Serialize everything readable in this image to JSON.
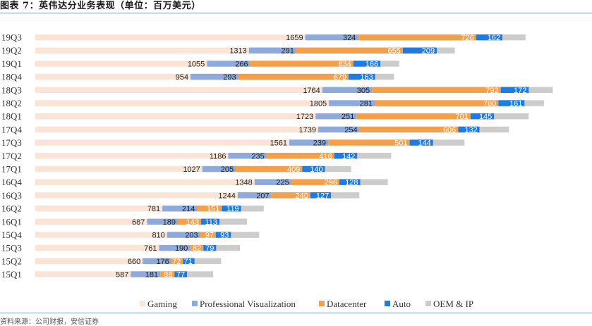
{
  "title": "图表 7：英伟达分业务表现（单位：百万美元）",
  "source": "资料来源：公司财报，安信证券",
  "chart_data": {
    "type": "bar",
    "orientation": "horizontal",
    "stacked": true,
    "title": "图表 7：英伟达分业务表现（单位：百万美元）",
    "legend_position": "bottom",
    "grid": false,
    "categories": [
      "19Q3",
      "19Q2",
      "19Q1",
      "18Q4",
      "18Q3",
      "18Q2",
      "18Q1",
      "17Q4",
      "17Q3",
      "17Q2",
      "17Q1",
      "16Q4",
      "16Q3",
      "16Q2",
      "16Q1",
      "15Q4",
      "15Q3",
      "15Q2",
      "15Q1"
    ],
    "series": [
      {
        "name": "Gaming",
        "color": "#fbe4d5",
        "label_color": "#222222",
        "values": [
          1659,
          1313,
          1055,
          954,
          1764,
          1805,
          1723,
          1739,
          1561,
          1186,
          1027,
          1348,
          1244,
          781,
          687,
          810,
          761,
          660,
          587
        ]
      },
      {
        "name": "Professional Visualization",
        "color": "#8eaadb",
        "label_color": "#222222",
        "values": [
          324,
          291,
          266,
          293,
          305,
          281,
          251,
          254,
          239,
          235,
          205,
          225,
          207,
          214,
          189,
          203,
          190,
          176,
          181
        ]
      },
      {
        "name": "Datacenter",
        "color": "#f4a04a",
        "label_color": "#ffffff",
        "values": [
          726,
          655,
          634,
          679,
          792,
          760,
          701,
          606,
          501,
          416,
          409,
          296,
          240,
          151,
          143,
          97,
          82,
          72,
          88
        ]
      },
      {
        "name": "Auto",
        "color": "#1f7be0",
        "label_color": "#ffffff",
        "values": [
          162,
          209,
          166,
          163,
          172,
          161,
          145,
          132,
          144,
          142,
          140,
          128,
          127,
          119,
          113,
          93,
          79,
          71,
          77
        ]
      },
      {
        "name": "OEM & IP",
        "color": "#cccccc",
        "label_color": "#222222",
        "values": [
          142,
          111,
          116,
          116,
          148,
          119,
          212,
          180,
          193,
          208,
          160,
          170,
          174,
          139,
          169,
          173,
          146,
          163,
          160
        ]
      }
    ],
    "show_value_labels": [
      "Gaming",
      "Professional Visualization",
      "Datacenter",
      "Auto"
    ]
  }
}
